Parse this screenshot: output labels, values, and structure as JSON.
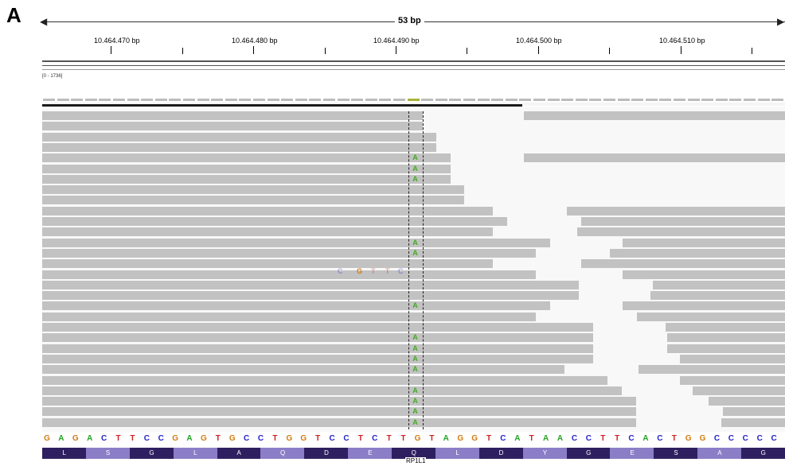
{
  "panel_label": "A",
  "ruler": {
    "span_label": "53 bp",
    "ticks": [
      "10.464.470 bp",
      "10.464.480 bp",
      "10.464.490 bp",
      "10.464.500 bp",
      "10.464.510 bp"
    ]
  },
  "coverage_track": {
    "scale_label": "[0 - 1736]"
  },
  "alignment": {
    "mismatch_base": "A",
    "faint_bases": [
      "C",
      "G",
      "T",
      "T",
      "C"
    ]
  },
  "sequence": [
    "G",
    "A",
    "G",
    "A",
    "C",
    "T",
    "T",
    "C",
    "C",
    "G",
    "A",
    "G",
    "T",
    "G",
    "C",
    "C",
    "T",
    "G",
    "G",
    "T",
    "C",
    "C",
    "T",
    "C",
    "T",
    "T",
    "G",
    "T",
    "A",
    "G",
    "G",
    "T",
    "C",
    "A",
    "T",
    "A",
    "A",
    "C",
    "C",
    "T",
    "T",
    "C",
    "A",
    "C",
    "T",
    "G",
    "G",
    "C",
    "C",
    "C",
    "C",
    "C"
  ],
  "amino_acids": [
    "L",
    "S",
    "G",
    "L",
    "A",
    "Q",
    "D",
    "E",
    "Q",
    "L",
    "D",
    "Y",
    "G",
    "E",
    "S",
    "A",
    "G"
  ],
  "gene_label": "RP1L1",
  "colors": {
    "A": "#22a322",
    "C": "#2222cc",
    "G": "#d27b10",
    "T": "#cc2222",
    "read": "#c2c2c2",
    "aa_dark": "#2e2060",
    "aa_light": "#8b7ec7"
  }
}
